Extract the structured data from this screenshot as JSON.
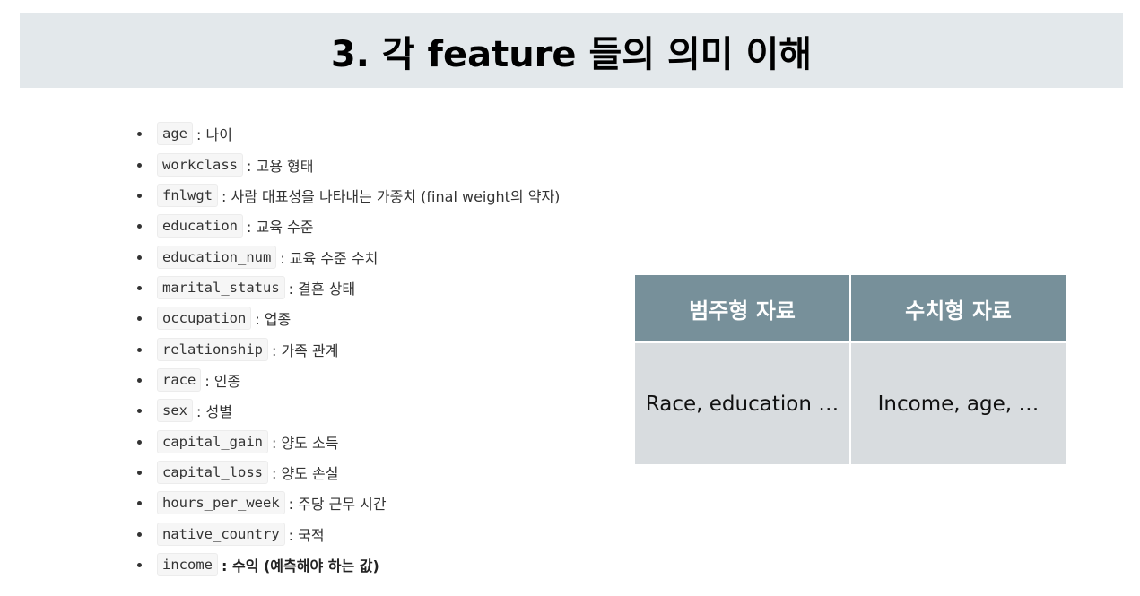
{
  "title": "3. 각 feature 들의 의미 이해",
  "features": [
    {
      "code": "age",
      "desc": ": 나이"
    },
    {
      "code": "workclass",
      "desc": ": 고용 형태"
    },
    {
      "code": "fnlwgt",
      "desc": ": 사람 대표성을 나타내는 가중치 (final weight의 약자)"
    },
    {
      "code": "education",
      "desc": ": 교육 수준"
    },
    {
      "code": "education_num",
      "desc": ": 교육 수준 수치"
    },
    {
      "code": "marital_status",
      "desc": ": 결혼 상태"
    },
    {
      "code": "occupation",
      "desc": ": 업종"
    },
    {
      "code": "relationship",
      "desc": ": 가족 관계"
    },
    {
      "code": "race",
      "desc": ": 인종"
    },
    {
      "code": "sex",
      "desc": ": 성별"
    },
    {
      "code": "capital_gain",
      "desc": ": 양도 소득"
    },
    {
      "code": "capital_loss",
      "desc": ": 양도 손실"
    },
    {
      "code": "hours_per_week",
      "desc": ": 주당 근무 시간"
    },
    {
      "code": "native_country",
      "desc": ": 국적"
    },
    {
      "code": "income",
      "desc": ": 수익 (예측해야 하는 값)"
    }
  ],
  "table": {
    "headers": [
      "범주형 자료",
      "수치형 자료"
    ],
    "cells": [
      "Race, education …",
      "Income, age, …"
    ]
  }
}
